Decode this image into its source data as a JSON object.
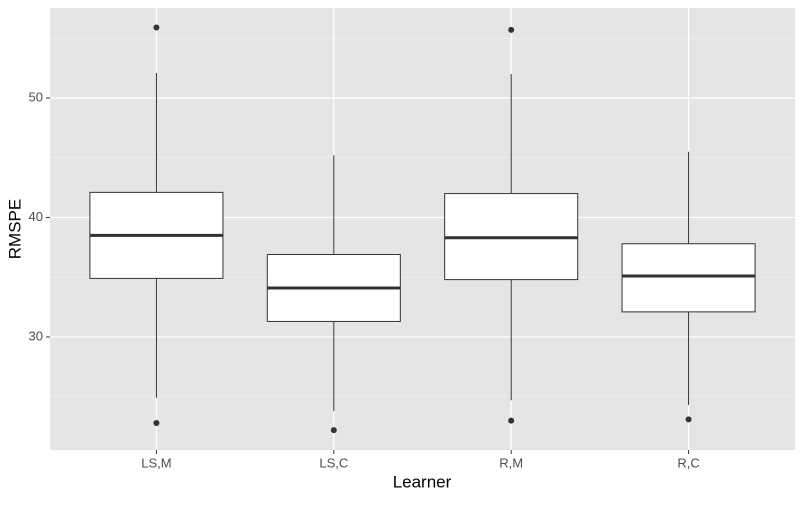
{
  "chart_data": {
    "type": "boxplot",
    "x_label": "Learner",
    "y_label": "RMSPE",
    "categories": [
      "LS,M",
      "LS,C",
      "R,M",
      "R,C"
    ],
    "boxes": [
      {
        "whisker_low": 24.9,
        "q1": 34.9,
        "median": 38.5,
        "q3": 42.1,
        "whisker_high": 52.1,
        "outliers": [
          55.9,
          22.8
        ]
      },
      {
        "whisker_low": 23.8,
        "q1": 31.3,
        "median": 34.1,
        "q3": 36.9,
        "whisker_high": 45.2,
        "outliers": [
          22.2
        ]
      },
      {
        "whisker_low": 24.7,
        "q1": 34.8,
        "median": 38.3,
        "q3": 42.0,
        "whisker_high": 52.0,
        "outliers": [
          55.7,
          23.0
        ]
      },
      {
        "whisker_low": 24.3,
        "q1": 32.1,
        "median": 35.1,
        "q3": 37.8,
        "whisker_high": 45.5,
        "outliers": [
          23.1
        ]
      }
    ],
    "box_fill": "#ffffff",
    "line_color": "#333333",
    "panel_color": "#e5e5e5",
    "ylim": [
      20.54,
      57.53
    ],
    "yticks": [
      30,
      40,
      50
    ],
    "minor_yticks": [
      25,
      35,
      45,
      55
    ],
    "grid": true
  }
}
